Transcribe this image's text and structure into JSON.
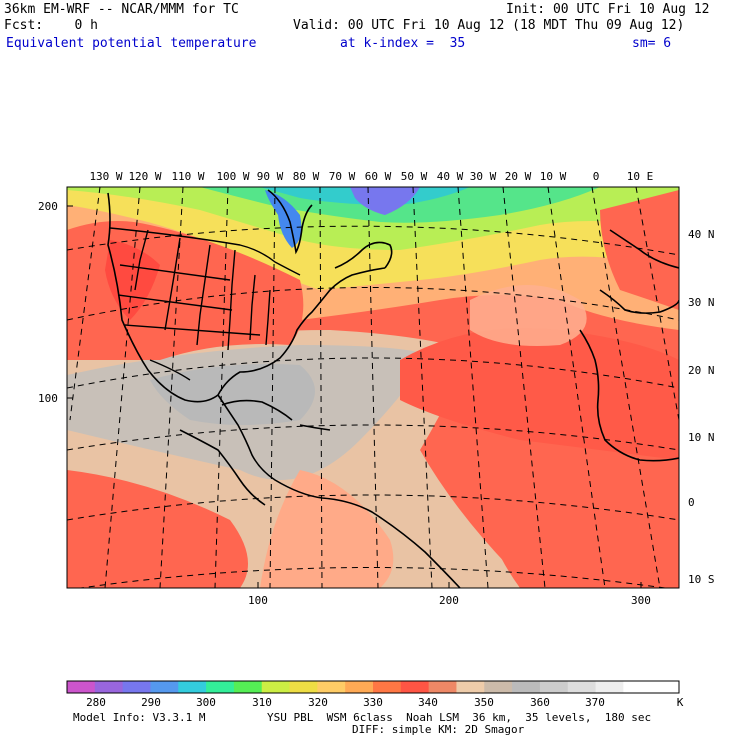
{
  "header": {
    "model_title": "36km EM-WRF -- NCAR/MMM for TC",
    "init": "Init: 00 UTC Fri 10 Aug 12",
    "fcst": "Fcst:    0 h",
    "valid": "Valid: 00 UTC Fri 10 Aug 12 (18 MDT Thu 09 Aug 12)",
    "field": "Equivalent potential temperature",
    "level": "at k-index =  35",
    "smoothing": "sm= 6"
  },
  "map": {
    "top_lon_labels": [
      "130 W",
      "120 W",
      "110 W",
      "100 W",
      "90 W",
      "80 W",
      "70 W",
      "60 W",
      "50 W",
      "40 W",
      "30 W",
      "20 W",
      "10 W",
      "0",
      "10 E"
    ],
    "right_lat_labels": [
      "40 N",
      "30 N",
      "20 N",
      "10 N",
      "0",
      "10 S"
    ],
    "left_grid_labels": [
      "200",
      "100"
    ],
    "bottom_grid_labels": [
      "100",
      "200",
      "300"
    ]
  },
  "colorbar": {
    "labels": [
      "280",
      "290",
      "300",
      "310",
      "320",
      "330",
      "340",
      "350",
      "360",
      "370"
    ],
    "unit": "K",
    "colors": [
      "#cc55cc",
      "#9966dd",
      "#7777ee",
      "#5599ee",
      "#33ccdd",
      "#33ee99",
      "#55ee55",
      "#ccee44",
      "#eedd44",
      "#ffcc66",
      "#ffaa55",
      "#ff7744",
      "#ff5544",
      "#ee8866",
      "#eeccaa",
      "#ccbbaa",
      "#bbbbbb",
      "#cccccc",
      "#dddddd",
      "#eeeeee",
      "#ffffff",
      "#ffffff"
    ]
  },
  "footer": {
    "model_info": "Model Info: V3.3.1 M",
    "physics": "YSU PBL  WSM 6class  Noah LSM  36 km,  35 levels,  180 sec",
    "physics2": "DIFF: simple KM: 2D Smagor"
  }
}
